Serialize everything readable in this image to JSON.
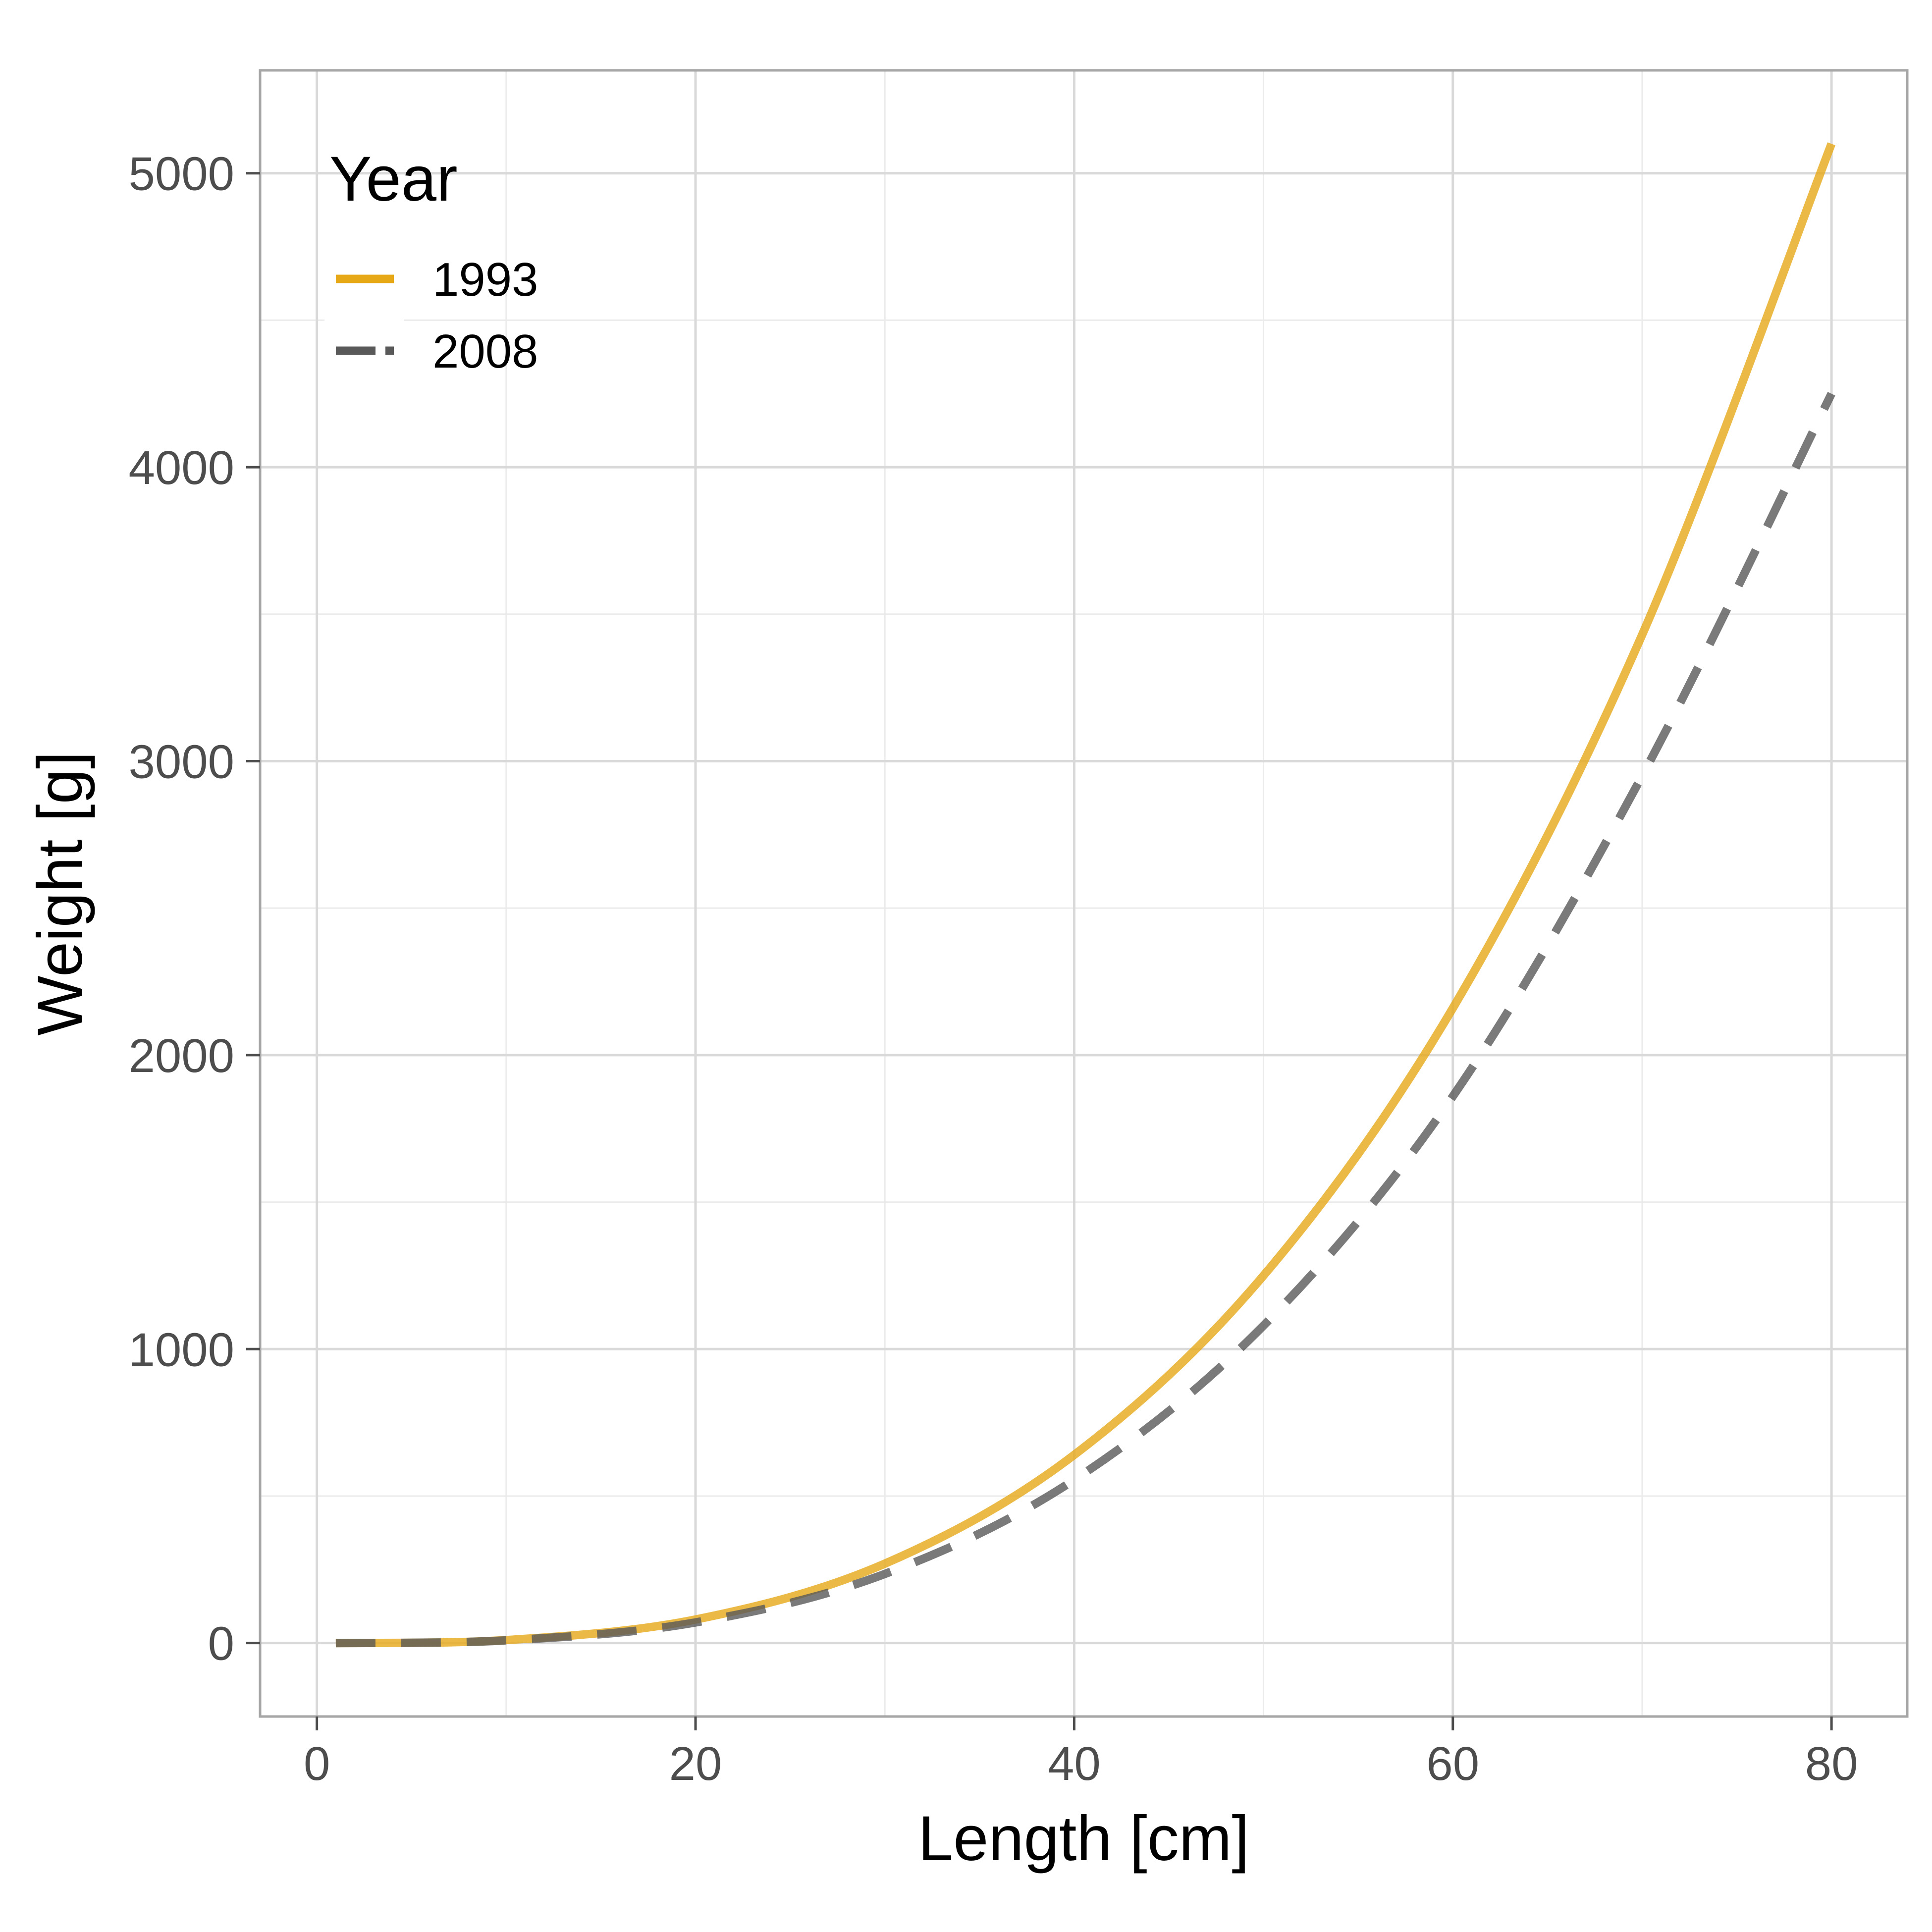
{
  "chart_data": {
    "type": "line",
    "title": "",
    "xlabel": "Length [cm]",
    "ylabel": "Weight [g]",
    "xlim": [
      -3,
      84
    ],
    "ylim": [
      -250,
      5350
    ],
    "x_ticks": [
      0,
      20,
      40,
      60,
      80
    ],
    "y_ticks": [
      0,
      1000,
      2000,
      3000,
      4000,
      5000
    ],
    "grid": true,
    "legend": {
      "title": "Year",
      "position": "top-left"
    },
    "series": [
      {
        "name": "1993",
        "color": "#E6A817",
        "dash": "solid",
        "x": [
          1,
          10,
          20,
          30,
          40,
          50,
          60,
          70,
          80
        ],
        "y": [
          0,
          10,
          80,
          270,
          640,
          1250,
          2160,
          3430,
          5100
        ]
      },
      {
        "name": "2008",
        "color": "#595959",
        "dash": "dashed",
        "x": [
          1,
          10,
          20,
          30,
          40,
          50,
          60,
          70,
          80
        ],
        "y": [
          0,
          9,
          70,
          235,
          555,
          1080,
          1860,
          2950,
          4250
        ]
      }
    ]
  }
}
